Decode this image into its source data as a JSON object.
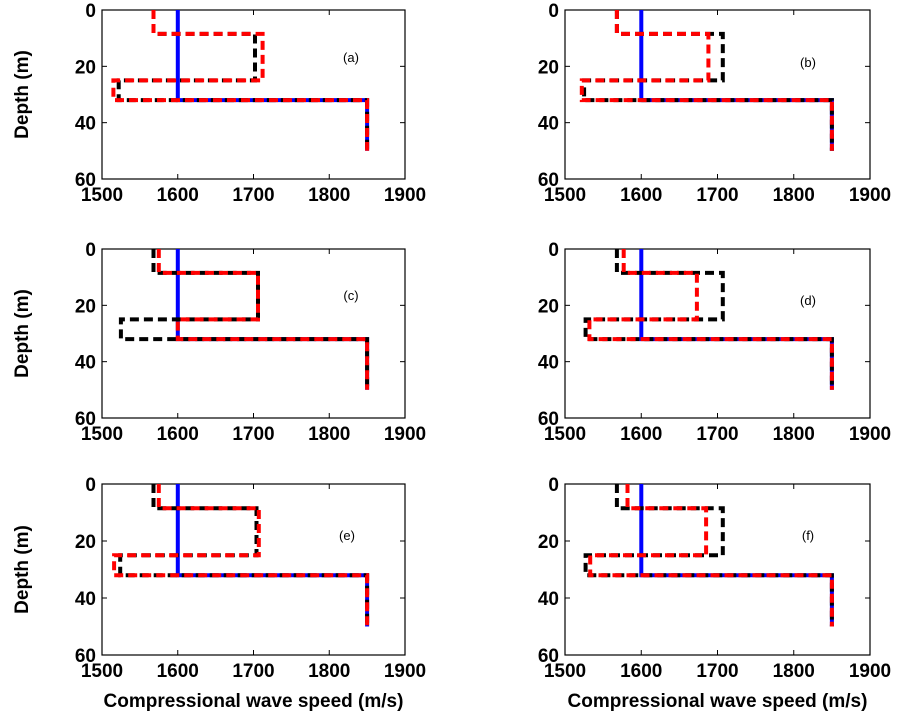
{
  "chart_data": [
    {
      "type": "line",
      "panel_label": "(a)",
      "xlabel": "",
      "ylabel": "Depth (m)",
      "xlim": [
        1500,
        1900
      ],
      "ylim": [
        60,
        0
      ],
      "xticks": [
        "1500",
        "1600",
        "1700",
        "1800",
        "1900"
      ],
      "yticks": [
        "0",
        "20",
        "40",
        "60"
      ],
      "series": [
        {
          "color": "#0000ff",
          "style": "solid",
          "x": [
            1600,
            1600,
            1850,
            1850
          ],
          "y": [
            0,
            32,
            32,
            50
          ]
        },
        {
          "color": "#000000",
          "style": "dashed",
          "x": [
            1568,
            1568,
            1702,
            1702,
            1522,
            1522,
            1850,
            1850
          ],
          "y": [
            0,
            8.5,
            8.5,
            25,
            25,
            32,
            32,
            50
          ]
        },
        {
          "color": "#ff0000",
          "style": "dashed",
          "x": [
            1568,
            1568,
            1712,
            1712,
            1515,
            1515,
            1850,
            1850
          ],
          "y": [
            0,
            8.5,
            8.5,
            25,
            25,
            32,
            32,
            50
          ]
        }
      ]
    },
    {
      "type": "line",
      "panel_label": "(b)",
      "xlabel": "",
      "ylabel": "",
      "xlim": [
        1500,
        1900
      ],
      "ylim": [
        60,
        0
      ],
      "xticks": [
        "1500",
        "1600",
        "1700",
        "1800",
        "1900"
      ],
      "yticks": [
        "0",
        "20",
        "40",
        "60"
      ],
      "series": [
        {
          "color": "#0000ff",
          "style": "solid",
          "x": [
            1600,
            1600,
            1850,
            1850
          ],
          "y": [
            0,
            32,
            32,
            50
          ]
        },
        {
          "color": "#000000",
          "style": "dashed",
          "x": [
            1568,
            1568,
            1707,
            1707,
            1525,
            1525,
            1850,
            1850
          ],
          "y": [
            0,
            8.5,
            8.5,
            25,
            25,
            32,
            32,
            50
          ]
        },
        {
          "color": "#ff0000",
          "style": "dashed",
          "x": [
            1568,
            1568,
            1688,
            1688,
            1522,
            1522,
            1850,
            1850
          ],
          "y": [
            0,
            8.5,
            8.5,
            25,
            25,
            32,
            32,
            50
          ]
        }
      ]
    },
    {
      "type": "line",
      "panel_label": "(c)",
      "xlabel": "",
      "ylabel": "Depth (m)",
      "xlim": [
        1500,
        1900
      ],
      "ylim": [
        60,
        0
      ],
      "xticks": [
        "1500",
        "1600",
        "1700",
        "1800",
        "1900"
      ],
      "yticks": [
        "0",
        "20",
        "40",
        "60"
      ],
      "series": [
        {
          "color": "#0000ff",
          "style": "solid",
          "x": [
            1600,
            1600,
            1850,
            1850
          ],
          "y": [
            0,
            32,
            32,
            50
          ]
        },
        {
          "color": "#000000",
          "style": "dashed",
          "x": [
            1568,
            1568,
            1706,
            1706,
            1525,
            1525,
            1850,
            1850
          ],
          "y": [
            0,
            8.5,
            8.5,
            25,
            25,
            32,
            32,
            50
          ]
        },
        {
          "color": "#ff0000",
          "style": "dashed",
          "x": [
            1575,
            1575,
            1706,
            1706,
            1600,
            1600,
            1850,
            1850
          ],
          "y": [
            0,
            8.5,
            8.5,
            25,
            25,
            32,
            32,
            50
          ]
        }
      ]
    },
    {
      "type": "line",
      "panel_label": "(d)",
      "xlabel": "",
      "ylabel": "",
      "xlim": [
        1500,
        1900
      ],
      "ylim": [
        60,
        0
      ],
      "xticks": [
        "1500",
        "1600",
        "1700",
        "1800",
        "1900"
      ],
      "yticks": [
        "0",
        "20",
        "40",
        "60"
      ],
      "series": [
        {
          "color": "#0000ff",
          "style": "solid",
          "x": [
            1600,
            1600,
            1850,
            1850
          ],
          "y": [
            0,
            32,
            32,
            50
          ]
        },
        {
          "color": "#000000",
          "style": "dashed",
          "x": [
            1568,
            1568,
            1707,
            1707,
            1527,
            1527,
            1850,
            1850
          ],
          "y": [
            0,
            8.5,
            8.5,
            25,
            25,
            32,
            32,
            50
          ]
        },
        {
          "color": "#ff0000",
          "style": "dashed",
          "x": [
            1577,
            1577,
            1673,
            1673,
            1532,
            1532,
            1850,
            1850
          ],
          "y": [
            0,
            8.5,
            8.5,
            25,
            25,
            32,
            32,
            50
          ]
        }
      ]
    },
    {
      "type": "line",
      "panel_label": "(e)",
      "xlabel": "Compressional wave speed (m/s)",
      "ylabel": "Depth (m)",
      "xlim": [
        1500,
        1900
      ],
      "ylim": [
        60,
        0
      ],
      "xticks": [
        "1500",
        "1600",
        "1700",
        "1800",
        "1900"
      ],
      "yticks": [
        "0",
        "20",
        "40",
        "60"
      ],
      "series": [
        {
          "color": "#0000ff",
          "style": "solid",
          "x": [
            1600,
            1600,
            1850,
            1850
          ],
          "y": [
            0,
            32,
            32,
            50
          ]
        },
        {
          "color": "#000000",
          "style": "dashed",
          "x": [
            1568,
            1568,
            1704,
            1704,
            1524,
            1524,
            1850,
            1850
          ],
          "y": [
            0,
            8.5,
            8.5,
            25,
            25,
            32,
            32,
            50
          ]
        },
        {
          "color": "#ff0000",
          "style": "dashed",
          "x": [
            1575,
            1575,
            1707,
            1707,
            1516,
            1516,
            1850,
            1850
          ],
          "y": [
            0,
            8.5,
            8.5,
            25,
            25,
            32,
            32,
            50
          ]
        }
      ]
    },
    {
      "type": "line",
      "panel_label": "(f)",
      "xlabel": "Compressional wave speed (m/s)",
      "ylabel": "",
      "xlim": [
        1500,
        1900
      ],
      "ylim": [
        60,
        0
      ],
      "xticks": [
        "1500",
        "1600",
        "1700",
        "1800",
        "1900"
      ],
      "yticks": [
        "0",
        "20",
        "40",
        "60"
      ],
      "series": [
        {
          "color": "#0000ff",
          "style": "solid",
          "x": [
            1600,
            1600,
            1850,
            1850
          ],
          "y": [
            0,
            32,
            32,
            50
          ]
        },
        {
          "color": "#000000",
          "style": "dashed",
          "x": [
            1568,
            1568,
            1707,
            1707,
            1527,
            1527,
            1850,
            1850
          ],
          "y": [
            0,
            8.5,
            8.5,
            25,
            25,
            32,
            32,
            50
          ]
        },
        {
          "color": "#ff0000",
          "style": "dashed",
          "x": [
            1582,
            1582,
            1685,
            1685,
            1533,
            1533,
            1850,
            1850
          ],
          "y": [
            0,
            8.5,
            8.5,
            25,
            25,
            32,
            32,
            50
          ]
        }
      ]
    }
  ]
}
